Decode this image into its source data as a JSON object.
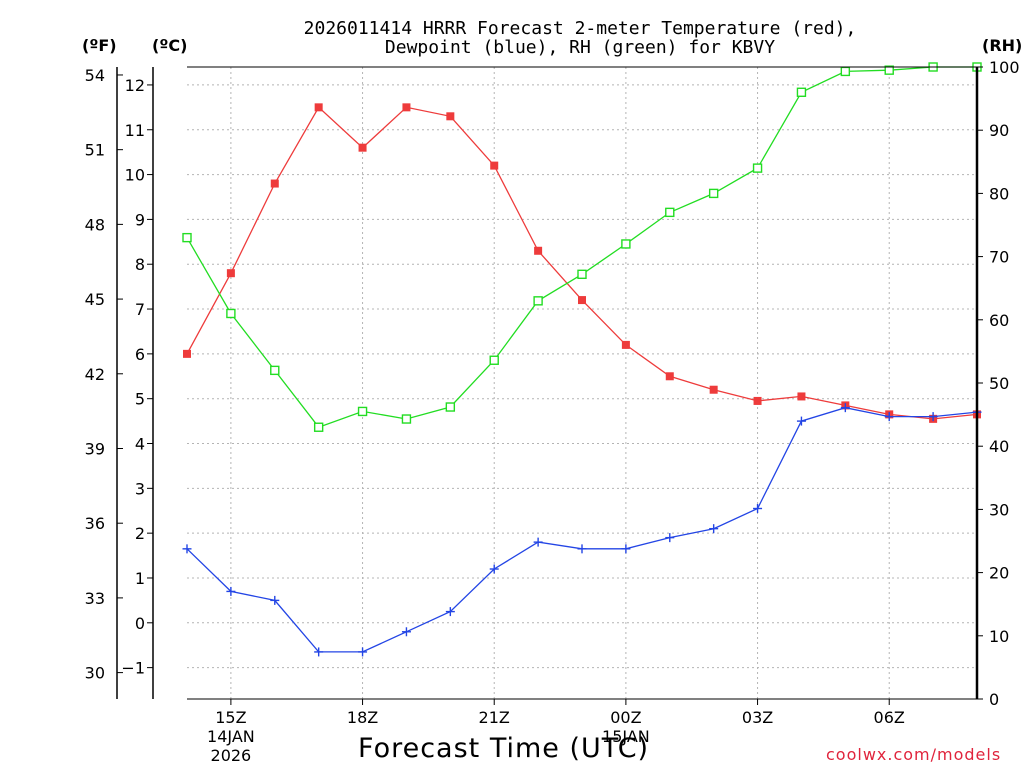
{
  "chart_data": {
    "type": "line",
    "title_lines": [
      "2026011414 HRRR Forecast 2-meter Temperature (red),",
      "Dewpoint (blue), RH (green) for KBVY"
    ],
    "unit_labels": {
      "fahrenheit": "(ºF)",
      "celsius": "(ºC)",
      "rh": "(RH)"
    },
    "xlabel": "Forecast Time (UTC)",
    "credit": "coolwx.com/models",
    "x_hours": [
      14,
      15,
      16,
      17,
      18,
      19,
      20,
      21,
      22,
      23,
      24,
      25,
      26,
      27,
      28,
      29,
      30,
      31,
      32
    ],
    "xlim": [
      14,
      32
    ],
    "x_ticks": [
      {
        "hour": 15,
        "lines": [
          "15Z",
          "14JAN",
          "2026"
        ]
      },
      {
        "hour": 18,
        "lines": [
          "18Z"
        ]
      },
      {
        "hour": 21,
        "lines": [
          "21Z"
        ]
      },
      {
        "hour": 24,
        "lines": [
          "00Z",
          "15JAN"
        ]
      },
      {
        "hour": 27,
        "lines": [
          "03Z"
        ]
      },
      {
        "hour": 30,
        "lines": [
          "06Z"
        ]
      }
    ],
    "celsius_axis": {
      "ylim": [
        -1.7,
        12.4
      ],
      "ticks": [
        -1,
        0,
        1,
        2,
        3,
        4,
        5,
        6,
        7,
        8,
        9,
        10,
        11,
        12
      ]
    },
    "fahrenheit_axis": {
      "ticks": [
        30,
        33,
        36,
        39,
        42,
        45,
        48,
        51,
        54
      ]
    },
    "rh_axis": {
      "ylim": [
        0,
        100
      ],
      "ticks": [
        0,
        10,
        20,
        30,
        40,
        50,
        60,
        70,
        80,
        90,
        100
      ]
    },
    "series": [
      {
        "name": "2-meter Temperature",
        "axis": "celsius",
        "color": "#ee3b3b",
        "marker": "filled-square",
        "values": [
          6.0,
          7.8,
          9.8,
          11.5,
          10.6,
          11.5,
          11.3,
          10.2,
          8.3,
          7.2,
          6.2,
          5.5,
          5.2,
          4.95,
          5.05,
          4.85,
          4.65,
          4.55,
          4.65
        ]
      },
      {
        "name": "Dewpoint",
        "axis": "celsius",
        "color": "#2345e5",
        "marker": "plus",
        "values": [
          1.65,
          0.7,
          0.5,
          -0.65,
          -0.65,
          -0.2,
          0.25,
          1.2,
          1.8,
          1.65,
          1.65,
          1.9,
          2.1,
          2.55,
          4.5,
          4.8,
          4.6,
          4.6,
          4.7
        ]
      },
      {
        "name": "RH",
        "axis": "rh",
        "color": "#22dd22",
        "marker": "open-square",
        "values": [
          73,
          61,
          52,
          43,
          45.5,
          44.3,
          46.2,
          53.6,
          63,
          67.2,
          72,
          77,
          80,
          84,
          96,
          99.3,
          99.5,
          100,
          100
        ]
      }
    ]
  }
}
